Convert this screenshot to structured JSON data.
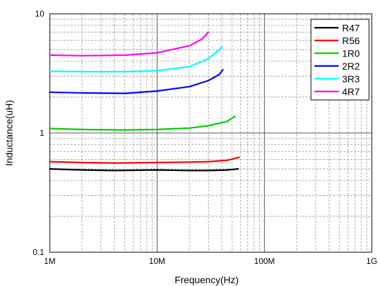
{
  "chart_data": {
    "type": "line",
    "xscale": "log",
    "yscale": "log",
    "xlabel": "Frequency(Hz)",
    "ylabel": "Inductance(uH)",
    "xlim": [
      1000000,
      1000000000
    ],
    "ylim": [
      0.1,
      10
    ],
    "xticks": [
      {
        "value": 1000000,
        "label": "1M"
      },
      {
        "value": 10000000,
        "label": "10M"
      },
      {
        "value": 100000000,
        "label": "100M"
      },
      {
        "value": 1000000000,
        "label": "1G"
      }
    ],
    "yticks": [
      {
        "value": 0.1,
        "label": "0.1"
      },
      {
        "value": 1,
        "label": "1"
      },
      {
        "value": 10,
        "label": "10"
      }
    ],
    "grid": true,
    "legend_position": "top-right",
    "series": [
      {
        "name": "R47",
        "color": "#000000",
        "x": [
          1000000,
          2000000,
          4000000,
          10000000,
          20000000,
          30000000,
          45000000,
          57000000
        ],
        "y": [
          0.5,
          0.49,
          0.485,
          0.49,
          0.485,
          0.485,
          0.49,
          0.5
        ]
      },
      {
        "name": "R56",
        "color": "#ff0000",
        "x": [
          1000000,
          2000000,
          4000000,
          10000000,
          20000000,
          30000000,
          45000000,
          58000000
        ],
        "y": [
          0.575,
          0.565,
          0.56,
          0.565,
          0.57,
          0.575,
          0.59,
          0.625
        ]
      },
      {
        "name": "1R0",
        "color": "#00cc00",
        "x": [
          1000000,
          2000000,
          5000000,
          10000000,
          20000000,
          30000000,
          45000000,
          53000000
        ],
        "y": [
          1.09,
          1.07,
          1.06,
          1.07,
          1.1,
          1.15,
          1.25,
          1.38
        ]
      },
      {
        "name": "2R2",
        "color": "#0000ff",
        "x": [
          1000000,
          2000000,
          5000000,
          10000000,
          20000000,
          30000000,
          38000000,
          41000000
        ],
        "y": [
          2.2,
          2.17,
          2.15,
          2.25,
          2.45,
          2.75,
          3.1,
          3.4
        ]
      },
      {
        "name": "3R3",
        "color": "#00ffff",
        "x": [
          1000000,
          2000000,
          5000000,
          10000000,
          20000000,
          30000000,
          38000000,
          40000000
        ],
        "y": [
          3.3,
          3.27,
          3.27,
          3.33,
          3.6,
          4.2,
          5.0,
          5.3
        ]
      },
      {
        "name": "4R7",
        "color": "#ff00ff",
        "x": [
          1000000,
          2000000,
          5000000,
          10000000,
          20000000,
          26000000,
          30000000
        ],
        "y": [
          4.5,
          4.45,
          4.5,
          4.7,
          5.4,
          6.1,
          7.0
        ]
      }
    ]
  }
}
